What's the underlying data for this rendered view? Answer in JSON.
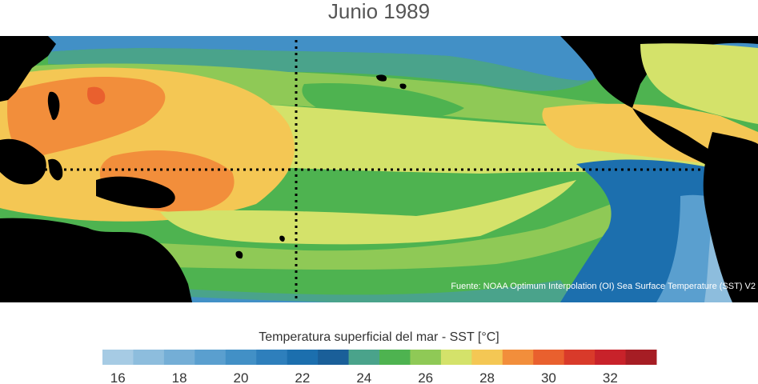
{
  "title": "Junio 1989",
  "source": "Fuente: NOAA Optimum Interpolation (OI) Sea Surface Temperature (SST) V2",
  "colorbar": {
    "label": "Temperatura superficial del mar - SST  [°C]",
    "ticks": [
      "16",
      "18",
      "20",
      "22",
      "24",
      "26",
      "28",
      "30",
      "32"
    ],
    "colors": [
      "#a6cbe4",
      "#8dbddd",
      "#74aed6",
      "#5a9fcf",
      "#4290c6",
      "#2e7fbc",
      "#1c6fae",
      "#1a5f99",
      "#4aa38b",
      "#4eb350",
      "#8fc956",
      "#d4e26a",
      "#f4c754",
      "#f28e3b",
      "#e9602e",
      "#d93a2a",
      "#c8222a",
      "#a61d24"
    ]
  },
  "map": {
    "land_color": "#000000",
    "ocean_palette": {
      "cold_deep": "#1c6fae",
      "cold": "#4290c6",
      "cool": "#74aed6",
      "teal": "#4aa38b",
      "green": "#4eb350",
      "light_green": "#8fc956",
      "yellow_green": "#d4e26a",
      "yellow": "#f4c754",
      "orange": "#f28e3b",
      "red_orange": "#e9602e"
    }
  }
}
